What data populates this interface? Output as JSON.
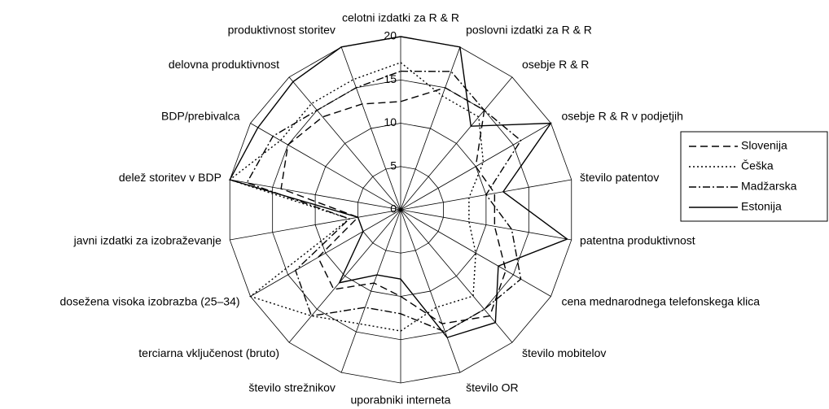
{
  "chart_data": {
    "type": "radar",
    "categories": [
      "celotni izdatki za R & R",
      "poslovni izdatki za R & R",
      "osebje R & R",
      "osebje R & R v podjetjih",
      "število patentov",
      "patentna produktivnost",
      "cena mednarodnega telefonskega klica",
      "število mobitelov",
      "število OR",
      "uporabniki interneta",
      "število strežnikov",
      "terciarna vključenost (bruto)",
      "dosežena visoka izobrazba (25–34)",
      "javni izdatki za izobraževanje",
      "delež storitev v BDP",
      "BDP/prebivalca",
      "delovna produktivnost",
      "produktivnost storitev"
    ],
    "series": [
      {
        "name": "Slovenija",
        "color": "#000000",
        "dash": "9,5",
        "values": [
          12.5,
          15,
          15,
          10,
          11,
          11,
          14,
          16,
          14,
          10,
          9,
          12,
          11,
          5,
          14,
          15,
          14,
          13
        ]
      },
      {
        "name": "Češka",
        "color": "#000000",
        "dash": "2,3",
        "values": [
          17,
          14,
          14,
          11,
          8,
          8,
          10,
          13,
          12,
          14,
          14,
          16,
          20,
          6,
          20,
          16,
          16,
          16
        ]
      },
      {
        "name": "Madžarska",
        "color": "#000000",
        "dash": "9,3,2,3",
        "values": [
          16,
          17,
          15,
          16,
          10,
          13,
          16,
          15,
          15,
          12,
          12,
          16,
          14,
          6,
          18,
          17,
          15,
          15
        ]
      },
      {
        "name": "Estonija",
        "color": "#000000",
        "dash": "none",
        "values": [
          20,
          20,
          12.6,
          20,
          12,
          19.5,
          13,
          17,
          15.7,
          8,
          8,
          11,
          5,
          5,
          20,
          19,
          19.3,
          20
        ]
      }
    ],
    "ylim": [
      0,
      20
    ],
    "yticks": [
      0,
      5,
      10,
      15,
      20
    ],
    "grid": true,
    "legend": "right"
  }
}
